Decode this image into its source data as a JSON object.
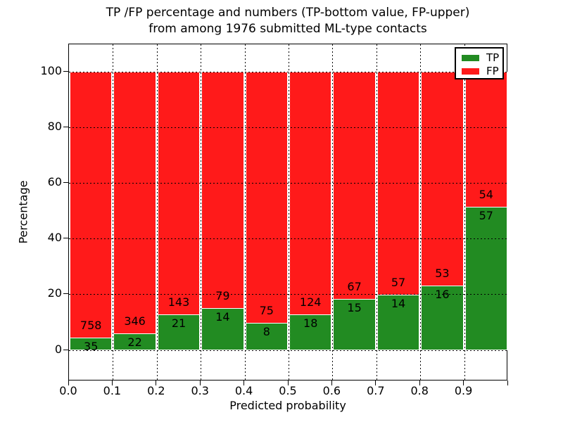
{
  "chart_data": {
    "type": "bar",
    "stacked": true,
    "normalized_to_percent": 100,
    "title_line1": "TP /FP percentage and numbers (TP-bottom value, FP-upper)",
    "title_line2": "from among 1976 submitted ML-type contacts",
    "total_contacts": 1976,
    "xlabel": "Predicted probability",
    "ylabel": "Percentage",
    "x_range": [
      0.0,
      1.0
    ],
    "bin_width": 0.1,
    "x_tick_labels": [
      "0.0",
      "0.1",
      "0.2",
      "0.3",
      "0.4",
      "0.5",
      "0.6",
      "0.7",
      "0.8",
      "0.9"
    ],
    "y_tick_values": [
      0,
      20,
      40,
      60,
      80,
      100
    ],
    "y_tick_labels": [
      "0",
      "20",
      "40",
      "60",
      "80",
      "100"
    ],
    "grid": "dotted",
    "series": [
      {
        "name": "TP",
        "color": "#228b22",
        "counts": [
          35,
          22,
          21,
          14,
          8,
          18,
          15,
          14,
          16,
          57
        ]
      },
      {
        "name": "FP",
        "color": "#ff1a1a",
        "counts": [
          758,
          346,
          143,
          79,
          75,
          124,
          67,
          57,
          53,
          54
        ]
      }
    ],
    "tp_percent_by_bin": [
      4.4,
      6.0,
      12.8,
      15.1,
      9.6,
      12.7,
      18.3,
      19.7,
      23.2,
      51.4
    ],
    "legend": {
      "position": "upper right",
      "entries": [
        {
          "label": "TP",
          "color": "#228b22"
        },
        {
          "label": "FP",
          "color": "#ff1a1a"
        }
      ]
    }
  }
}
